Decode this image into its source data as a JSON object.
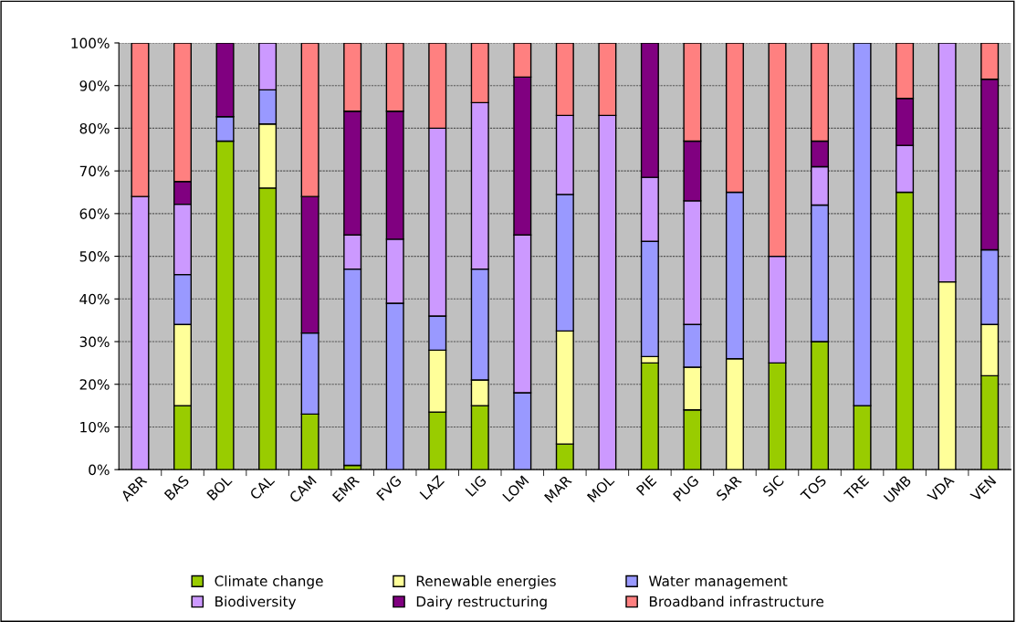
{
  "chart_data": {
    "type": "bar",
    "stacked": true,
    "categories": [
      "ABR",
      "BAS",
      "BOL",
      "CAL",
      "CAM",
      "EMR",
      "FVG",
      "LAZ",
      "LIG",
      "LOM",
      "MAR",
      "MOL",
      "PIE",
      "PUG",
      "SAR",
      "SIC",
      "TOS",
      "TRE",
      "UMB",
      "VDA",
      "VEN"
    ],
    "series": [
      {
        "name": "Climate change",
        "color": "#99cc00",
        "values": [
          null,
          15,
          77,
          66,
          13,
          1,
          null,
          13.5,
          15,
          null,
          6,
          null,
          25,
          14,
          null,
          25,
          30,
          15,
          65,
          null,
          22
        ]
      },
      {
        "name": "Renewable energies",
        "color": "#ffff99",
        "values": [
          null,
          19,
          null,
          15,
          null,
          null,
          null,
          14.5,
          6,
          null,
          26.5,
          null,
          1.5,
          10,
          26,
          null,
          null,
          null,
          null,
          44,
          12
        ]
      },
      {
        "name": "Water management",
        "color": "#9999ff",
        "values": [
          null,
          11.7,
          5.7,
          8,
          19,
          46,
          39,
          8,
          26,
          18,
          32,
          null,
          27,
          10,
          39,
          null,
          32,
          85,
          null,
          null,
          17.5
        ]
      },
      {
        "name": "Biodiversity",
        "color": "#cc99ff",
        "values": [
          64,
          16.5,
          null,
          11,
          null,
          8,
          15,
          44,
          39,
          37,
          18.5,
          83,
          15,
          29,
          null,
          25,
          9,
          null,
          11,
          56,
          null
        ]
      },
      {
        "name": "Dairy restructuring",
        "color": "#800080",
        "values": [
          null,
          5.3,
          17.3,
          null,
          32,
          29,
          30,
          null,
          null,
          37,
          null,
          null,
          31.5,
          14,
          null,
          null,
          6,
          null,
          11,
          null,
          40
        ]
      },
      {
        "name": "Broadband infrastructure",
        "color": "#ff8080",
        "values": [
          36,
          32.5,
          null,
          null,
          36,
          16,
          16,
          20,
          14,
          8,
          17,
          17,
          null,
          23,
          35,
          50,
          23,
          null,
          13,
          null,
          8.5
        ]
      }
    ],
    "ylim": [
      0,
      100
    ],
    "yticks": [
      {
        "value": 0,
        "label": "0%"
      },
      {
        "value": 10,
        "label": "10%"
      },
      {
        "value": 20,
        "label": "20%"
      },
      {
        "value": 30,
        "label": "30%"
      },
      {
        "value": 40,
        "label": "40%"
      },
      {
        "value": 50,
        "label": "50%"
      },
      {
        "value": 60,
        "label": "60%"
      },
      {
        "value": 70,
        "label": "70%"
      },
      {
        "value": 80,
        "label": "80%"
      },
      {
        "value": 90,
        "label": "90%"
      },
      {
        "value": 100,
        "label": "100%"
      }
    ],
    "grid": "y",
    "legend": "bottom"
  }
}
